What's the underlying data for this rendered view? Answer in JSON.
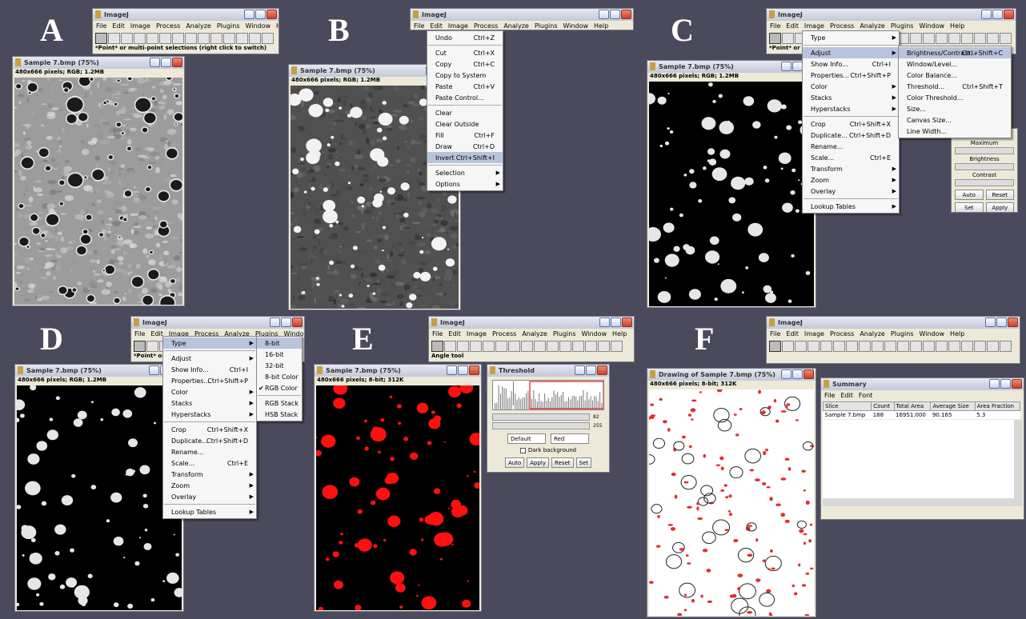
{
  "app_title": "ImageJ",
  "menubar": [
    "File",
    "Edit",
    "Image",
    "Process",
    "Analyze",
    "Plugins",
    "Window",
    "Help"
  ],
  "panels": [
    {
      "label": "A",
      "status": "*Point* or multi-point selections (right click to switch)",
      "image_window": {
        "title": "Sample 7.bmp (75%)",
        "info": "480x666 pixels; RGB; 1.2MB"
      }
    },
    {
      "label": "B",
      "image_window": {
        "title": "Sample 7.bmp (75%)",
        "info": "480x666 pixels; RGB; 1.2MB"
      },
      "menu": [
        [
          {
            "label": "Undo",
            "shortcut": "Ctrl+Z"
          }
        ],
        [
          {
            "label": "Cut",
            "shortcut": "Ctrl+X"
          },
          {
            "label": "Copy",
            "shortcut": "Ctrl+C"
          },
          {
            "label": "Copy to System"
          },
          {
            "label": "Paste",
            "shortcut": "Ctrl+V"
          },
          {
            "label": "Paste Control..."
          }
        ],
        [
          {
            "label": "Clear"
          },
          {
            "label": "Clear Outside"
          },
          {
            "label": "Fill",
            "shortcut": "Ctrl+F"
          },
          {
            "label": "Draw",
            "shortcut": "Ctrl+D"
          },
          {
            "label": "Invert",
            "shortcut": "Ctrl+Shift+I",
            "highlighted": true
          }
        ],
        [
          {
            "label": "Selection",
            "submenu": true
          },
          {
            "label": "Options",
            "submenu": true
          }
        ]
      ]
    },
    {
      "label": "C",
      "status": "*Point* or mu",
      "image_window": {
        "title": "Sample 7.bmp (75%)",
        "info": "480x666 pixels; RGB; 1.2MB"
      },
      "menu": [
        [
          {
            "label": "Type",
            "submenu": true
          }
        ],
        [
          {
            "label": "Adjust",
            "submenu": true,
            "highlighted": true
          },
          {
            "label": "Show Info...",
            "shortcut": "Ctrl+I"
          },
          {
            "label": "Properties...",
            "shortcut": "Ctrl+Shift+P"
          },
          {
            "label": "Color",
            "submenu": true
          },
          {
            "label": "Stacks",
            "submenu": true
          },
          {
            "label": "Hyperstacks",
            "submenu": true
          }
        ],
        [
          {
            "label": "Crop",
            "shortcut": "Ctrl+Shift+X"
          },
          {
            "label": "Duplicate...",
            "shortcut": "Ctrl+Shift+D"
          },
          {
            "label": "Rename..."
          },
          {
            "label": "Scale...",
            "shortcut": "Ctrl+E"
          },
          {
            "label": "Transform",
            "submenu": true
          },
          {
            "label": "Zoom",
            "submenu": true
          },
          {
            "label": "Overlay",
            "submenu": true
          }
        ],
        [
          {
            "label": "Lookup Tables",
            "submenu": true
          }
        ]
      ],
      "submenu": [
        [
          {
            "label": "Brightness/Contrast...",
            "shortcut": "Ctrl+Shift+C",
            "highlighted": true
          },
          {
            "label": "Window/Level..."
          },
          {
            "label": "Color Balance..."
          },
          {
            "label": "Threshold...",
            "shortcut": "Ctrl+Shift+T"
          },
          {
            "label": "Color Threshold..."
          },
          {
            "label": "Size..."
          },
          {
            "label": "Canvas Size..."
          },
          {
            "label": "Line Width..."
          }
        ]
      ],
      "bc_window": {
        "labels": [
          "Maximum",
          "Brightness",
          "Contrast"
        ],
        "buttons": [
          "Auto",
          "Reset",
          "Set",
          "Apply"
        ]
      }
    },
    {
      "label": "D",
      "status": "*Point* or mu",
      "image_window": {
        "title": "Sample 7.bmp (75%)",
        "info": "480x666 pixels; RGB; 1.2MB"
      },
      "menu": [
        [
          {
            "label": "Type",
            "submenu": true,
            "highlighted": true
          }
        ],
        [
          {
            "label": "Adjust",
            "submenu": true
          },
          {
            "label": "Show Info...",
            "shortcut": "Ctrl+I"
          },
          {
            "label": "Properties...",
            "shortcut": "Ctrl+Shift+P"
          },
          {
            "label": "Color",
            "submenu": true
          },
          {
            "label": "Stacks",
            "submenu": true
          },
          {
            "label": "Hyperstacks",
            "submenu": true
          }
        ],
        [
          {
            "label": "Crop",
            "shortcut": "Ctrl+Shift+X"
          },
          {
            "label": "Duplicate...",
            "shortcut": "Ctrl+Shift+D"
          },
          {
            "label": "Rename..."
          },
          {
            "label": "Scale...",
            "shortcut": "Ctrl+E"
          },
          {
            "label": "Transform",
            "submenu": true
          },
          {
            "label": "Zoom",
            "submenu": true
          },
          {
            "label": "Overlay",
            "submenu": true
          }
        ],
        [
          {
            "label": "Lookup Tables",
            "submenu": true
          }
        ]
      ],
      "submenu": [
        [
          {
            "label": "8-bit",
            "highlighted": true
          },
          {
            "label": "16-bit"
          },
          {
            "label": "32-bit"
          },
          {
            "label": "8-bit Color"
          },
          {
            "label": "RGB Color",
            "checked": true
          }
        ],
        [
          {
            "label": "RGB Stack"
          },
          {
            "label": "HSB Stack"
          }
        ]
      ]
    },
    {
      "label": "E",
      "status": "Angle tool",
      "image_window": {
        "title": "Sample 7.bmp (75%)",
        "info": "480x666 pixels; 8-bit; 312K"
      },
      "threshold_window": {
        "title": "Threshold",
        "min": "82",
        "max": "255",
        "method": "Default",
        "mode": "Red",
        "checkbox": "Dark background",
        "buttons": [
          "Auto",
          "Apply",
          "Reset",
          "Set"
        ]
      }
    },
    {
      "label": "F",
      "image_window": {
        "title": "Drawing of Sample 7.bmp (75%)",
        "info": "480x666 pixels; 8-bit; 312K"
      },
      "summary_window": {
        "title": "Summary",
        "menubar": [
          "File",
          "Edit",
          "Font"
        ],
        "columns": [
          "Slice",
          "Count",
          "Total Area",
          "Average Size",
          "Area Fraction"
        ],
        "rows": [
          [
            "Sample 7.bmp",
            "188",
            "16951.000",
            "90.165",
            "5.3"
          ]
        ]
      }
    }
  ]
}
